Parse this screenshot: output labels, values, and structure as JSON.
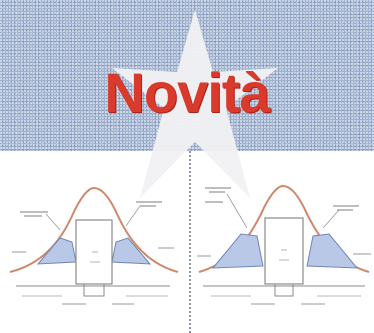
{
  "headline": {
    "text": "Novità",
    "color": "#d93a2b"
  },
  "banner": {
    "background_color": "#9fb2cf",
    "star_color": "#f1f1f3"
  },
  "illustrations": [
    {
      "icon": "cross-section-sketch-icon"
    },
    {
      "icon": "cross-section-sketch-icon"
    }
  ]
}
